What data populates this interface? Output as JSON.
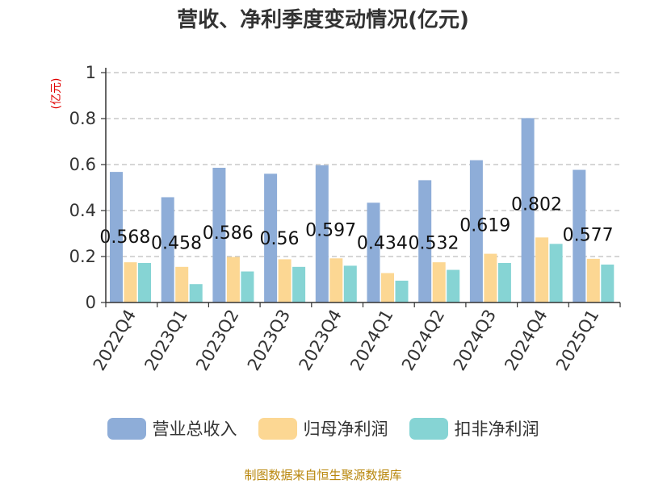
{
  "source_label": "制图数据来自恒生聚源数据库",
  "colors": {
    "revenue": "#8eadd8",
    "net_profit": "#fcd793",
    "deducted_net_profit": "#86d4d4"
  },
  "chart_data": {
    "type": "bar",
    "title": "营收、净利季度变动情况(亿元)",
    "ylabel": "(亿元)",
    "xlabel": "",
    "ylim": [
      0,
      1
    ],
    "yticks": [
      "0",
      "0.2",
      "0.4",
      "0.6",
      "0.8",
      "1"
    ],
    "grid": true,
    "legend_position": "bottom",
    "categories": [
      "2022Q4",
      "2023Q1",
      "2023Q2",
      "2023Q3",
      "2023Q4",
      "2024Q1",
      "2024Q2",
      "2024Q3",
      "2024Q4",
      "2025Q1"
    ],
    "series": [
      {
        "name": "营业总收入",
        "values": [
          0.568,
          0.458,
          0.586,
          0.56,
          0.597,
          0.434,
          0.532,
          0.619,
          0.802,
          0.577
        ],
        "labels": [
          "0.568",
          "0.458",
          "0.586",
          "0.56",
          "0.597",
          "0.434",
          "0.532",
          "0.619",
          "0.802",
          "0.577"
        ]
      },
      {
        "name": "归母净利润",
        "values": [
          0.175,
          0.155,
          0.198,
          0.188,
          0.192,
          0.128,
          0.175,
          0.212,
          0.283,
          0.19
        ]
      },
      {
        "name": "扣非净利润",
        "values": [
          0.172,
          0.08,
          0.135,
          0.155,
          0.16,
          0.095,
          0.142,
          0.172,
          0.255,
          0.165
        ]
      }
    ]
  }
}
